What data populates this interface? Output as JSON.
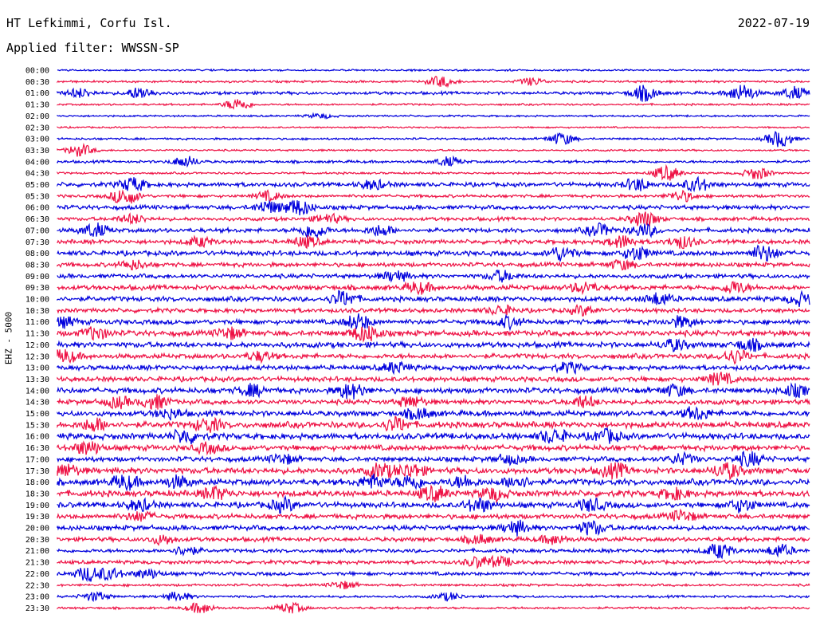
{
  "header": {
    "station": "HT Lefkimmi, Corfu Isl.",
    "date": "2022-07-19",
    "filter": "Applied filter: WWSSN-SP"
  },
  "chart_data": {
    "type": "line",
    "title": "HT Lefkimmi, Corfu Isl.",
    "channel_label": "EHZ - 5000",
    "colors": {
      "even_rows": "#0000dd",
      "odd_rows": "#ee1144"
    },
    "rows": [
      {
        "label": "00:00",
        "activity": 0.05,
        "bursts": []
      },
      {
        "label": "00:30",
        "activity": 0.08,
        "bursts": [
          [
            0.51,
            0.35
          ],
          [
            0.63,
            0.25
          ]
        ]
      },
      {
        "label": "01:00",
        "activity": 0.15,
        "bursts": [
          [
            0.03,
            0.3
          ],
          [
            0.11,
            0.4
          ],
          [
            0.78,
            0.5
          ],
          [
            0.91,
            0.6
          ],
          [
            0.98,
            0.4
          ]
        ]
      },
      {
        "label": "01:30",
        "activity": 0.06,
        "bursts": [
          [
            0.24,
            0.4
          ]
        ]
      },
      {
        "label": "02:00",
        "activity": 0.05,
        "bursts": [
          [
            0.35,
            0.15
          ]
        ]
      },
      {
        "label": "02:30",
        "activity": 0.03,
        "bursts": []
      },
      {
        "label": "03:00",
        "activity": 0.07,
        "bursts": [
          [
            0.67,
            0.4
          ],
          [
            0.96,
            0.55
          ]
        ]
      },
      {
        "label": "03:30",
        "activity": 0.05,
        "bursts": [
          [
            0.03,
            0.4
          ]
        ]
      },
      {
        "label": "04:00",
        "activity": 0.12,
        "bursts": [
          [
            0.17,
            0.35
          ],
          [
            0.52,
            0.3
          ]
        ]
      },
      {
        "label": "04:30",
        "activity": 0.07,
        "bursts": [
          [
            0.81,
            0.5
          ],
          [
            0.93,
            0.4
          ]
        ]
      },
      {
        "label": "05:00",
        "activity": 0.25,
        "bursts": [
          [
            0.1,
            0.45
          ],
          [
            0.42,
            0.3
          ],
          [
            0.77,
            0.4
          ],
          [
            0.85,
            0.45
          ]
        ]
      },
      {
        "label": "05:30",
        "activity": 0.15,
        "bursts": [
          [
            0.09,
            0.6
          ],
          [
            0.28,
            0.3
          ],
          [
            0.83,
            0.35
          ]
        ]
      },
      {
        "label": "06:00",
        "activity": 0.25,
        "bursts": [
          [
            0.28,
            0.4
          ],
          [
            0.32,
            0.55
          ]
        ]
      },
      {
        "label": "06:30",
        "activity": 0.2,
        "bursts": [
          [
            0.1,
            0.3
          ],
          [
            0.36,
            0.3
          ],
          [
            0.78,
            0.55
          ]
        ]
      },
      {
        "label": "07:00",
        "activity": 0.25,
        "bursts": [
          [
            0.05,
            0.45
          ],
          [
            0.34,
            0.5
          ],
          [
            0.43,
            0.35
          ],
          [
            0.72,
            0.4
          ],
          [
            0.78,
            0.4
          ]
        ]
      },
      {
        "label": "07:30",
        "activity": 0.25,
        "bursts": [
          [
            0.19,
            0.3
          ],
          [
            0.33,
            0.35
          ],
          [
            0.75,
            0.4
          ],
          [
            0.83,
            0.4
          ]
        ]
      },
      {
        "label": "08:00",
        "activity": 0.3,
        "bursts": [
          [
            0.67,
            0.45
          ],
          [
            0.77,
            0.45
          ],
          [
            0.94,
            0.55
          ]
        ]
      },
      {
        "label": "08:30",
        "activity": 0.25,
        "bursts": [
          [
            0.1,
            0.3
          ],
          [
            0.75,
            0.3
          ]
        ]
      },
      {
        "label": "09:00",
        "activity": 0.25,
        "bursts": [
          [
            0.45,
            0.35
          ],
          [
            0.59,
            0.35
          ]
        ]
      },
      {
        "label": "09:30",
        "activity": 0.3,
        "bursts": [
          [
            0.48,
            0.35
          ],
          [
            0.7,
            0.35
          ],
          [
            0.9,
            0.4
          ]
        ]
      },
      {
        "label": "10:00",
        "activity": 0.3,
        "bursts": [
          [
            0.38,
            0.5
          ],
          [
            0.8,
            0.4
          ],
          [
            0.99,
            0.4
          ]
        ]
      },
      {
        "label": "10:30",
        "activity": 0.25,
        "bursts": [
          [
            0.59,
            0.3
          ],
          [
            0.7,
            0.3
          ]
        ]
      },
      {
        "label": "11:00",
        "activity": 0.3,
        "bursts": [
          [
            0.01,
            0.3
          ],
          [
            0.4,
            0.5
          ],
          [
            0.6,
            0.35
          ],
          [
            0.83,
            0.35
          ]
        ]
      },
      {
        "label": "11:30",
        "activity": 0.35,
        "bursts": [
          [
            0.05,
            0.4
          ],
          [
            0.23,
            0.35
          ],
          [
            0.41,
            0.65
          ]
        ]
      },
      {
        "label": "12:00",
        "activity": 0.35,
        "bursts": [
          [
            0.82,
            0.35
          ],
          [
            0.92,
            0.35
          ]
        ]
      },
      {
        "label": "12:30",
        "activity": 0.3,
        "bursts": [
          [
            0.01,
            0.4
          ],
          [
            0.27,
            0.3
          ],
          [
            0.9,
            0.45
          ]
        ]
      },
      {
        "label": "13:00",
        "activity": 0.3,
        "bursts": [
          [
            0.45,
            0.35
          ],
          [
            0.68,
            0.3
          ]
        ]
      },
      {
        "label": "13:30",
        "activity": 0.3,
        "bursts": [
          [
            0.88,
            0.4
          ]
        ]
      },
      {
        "label": "14:00",
        "activity": 0.35,
        "bursts": [
          [
            0.26,
            0.35
          ],
          [
            0.39,
            0.6
          ],
          [
            0.82,
            0.35
          ],
          [
            0.98,
            0.35
          ]
        ]
      },
      {
        "label": "14:30",
        "activity": 0.3,
        "bursts": [
          [
            0.08,
            0.35
          ],
          [
            0.13,
            0.45
          ],
          [
            0.47,
            0.35
          ],
          [
            0.7,
            0.35
          ]
        ]
      },
      {
        "label": "15:00",
        "activity": 0.35,
        "bursts": [
          [
            0.15,
            0.3
          ],
          [
            0.48,
            0.35
          ],
          [
            0.85,
            0.4
          ]
        ]
      },
      {
        "label": "15:30",
        "activity": 0.4,
        "bursts": [
          [
            0.05,
            0.4
          ],
          [
            0.2,
            0.45
          ],
          [
            0.45,
            0.45
          ]
        ]
      },
      {
        "label": "16:00",
        "activity": 0.4,
        "bursts": [
          [
            0.17,
            0.45
          ],
          [
            0.66,
            0.45
          ],
          [
            0.73,
            0.4
          ]
        ]
      },
      {
        "label": "16:30",
        "activity": 0.35,
        "bursts": [
          [
            0.04,
            0.45
          ],
          [
            0.2,
            0.3
          ]
        ]
      },
      {
        "label": "17:00",
        "activity": 0.3,
        "bursts": [
          [
            0.3,
            0.3
          ],
          [
            0.6,
            0.3
          ],
          [
            0.83,
            0.35
          ],
          [
            0.92,
            0.45
          ]
        ]
      },
      {
        "label": "17:30",
        "activity": 0.4,
        "bursts": [
          [
            0.01,
            0.4
          ],
          [
            0.43,
            0.45
          ],
          [
            0.47,
            0.45
          ],
          [
            0.74,
            0.5
          ],
          [
            0.89,
            0.55
          ]
        ]
      },
      {
        "label": "18:00",
        "activity": 0.4,
        "bursts": [
          [
            0.09,
            0.45
          ],
          [
            0.16,
            0.35
          ],
          [
            0.42,
            0.45
          ],
          [
            0.47,
            0.45
          ],
          [
            0.54,
            0.35
          ],
          [
            0.61,
            0.4
          ]
        ]
      },
      {
        "label": "18:30",
        "activity": 0.4,
        "bursts": [
          [
            0.21,
            0.4
          ],
          [
            0.5,
            0.5
          ],
          [
            0.58,
            0.4
          ],
          [
            0.82,
            0.35
          ]
        ]
      },
      {
        "label": "19:00",
        "activity": 0.35,
        "bursts": [
          [
            0.11,
            0.35
          ],
          [
            0.3,
            0.4
          ],
          [
            0.56,
            0.45
          ],
          [
            0.71,
            0.4
          ],
          [
            0.91,
            0.4
          ]
        ]
      },
      {
        "label": "19:30",
        "activity": 0.3,
        "bursts": [
          [
            0.11,
            0.3
          ],
          [
            0.83,
            0.35
          ]
        ]
      },
      {
        "label": "20:00",
        "activity": 0.3,
        "bursts": [
          [
            0.61,
            0.45
          ],
          [
            0.71,
            0.45
          ]
        ]
      },
      {
        "label": "20:30",
        "activity": 0.25,
        "bursts": [
          [
            0.14,
            0.3
          ],
          [
            0.56,
            0.3
          ],
          [
            0.66,
            0.3
          ]
        ]
      },
      {
        "label": "21:00",
        "activity": 0.2,
        "bursts": [
          [
            0.17,
            0.3
          ],
          [
            0.88,
            0.5
          ],
          [
            0.96,
            0.4
          ]
        ]
      },
      {
        "label": "21:30",
        "activity": 0.2,
        "bursts": [
          [
            0.56,
            0.35
          ],
          [
            0.59,
            0.3
          ]
        ]
      },
      {
        "label": "22:00",
        "activity": 0.2,
        "bursts": [
          [
            0.04,
            0.45
          ],
          [
            0.07,
            0.35
          ],
          [
            0.12,
            0.3
          ]
        ]
      },
      {
        "label": "22:30",
        "activity": 0.1,
        "bursts": [
          [
            0.38,
            0.25
          ]
        ]
      },
      {
        "label": "23:00",
        "activity": 0.1,
        "bursts": [
          [
            0.05,
            0.3
          ],
          [
            0.16,
            0.3
          ],
          [
            0.52,
            0.25
          ]
        ]
      },
      {
        "label": "23:30",
        "activity": 0.08,
        "bursts": [
          [
            0.19,
            0.35
          ],
          [
            0.31,
            0.35
          ]
        ]
      }
    ]
  }
}
